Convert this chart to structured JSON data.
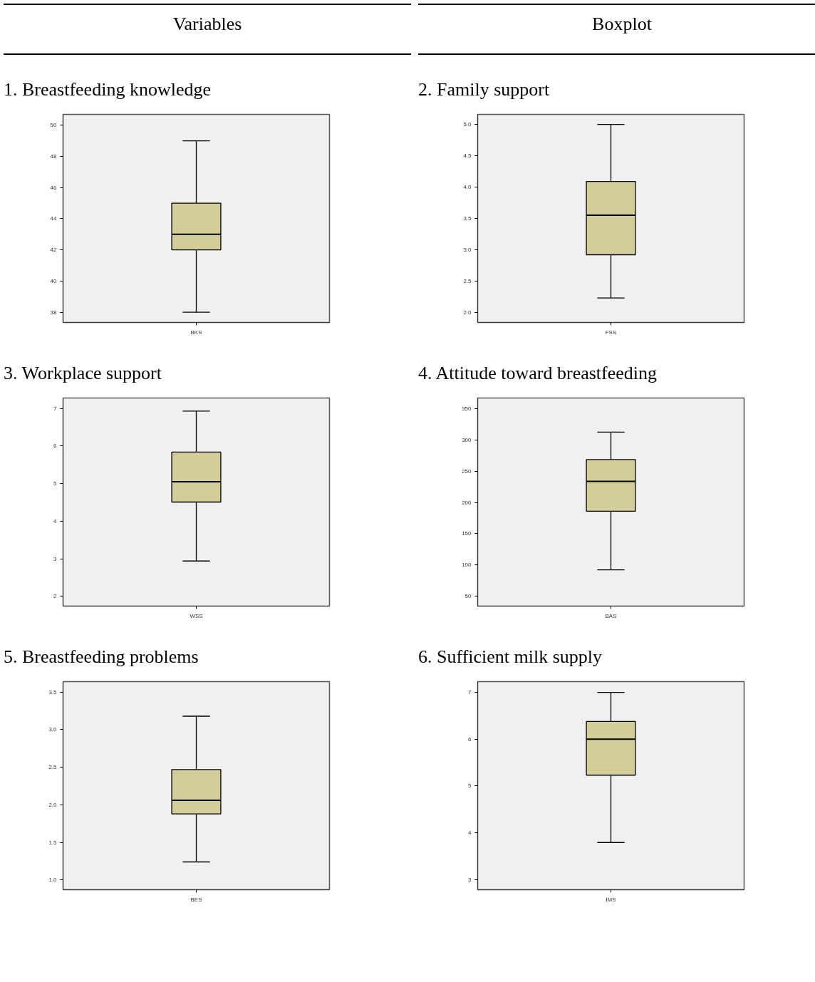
{
  "chart_data": [
    {
      "type": "box",
      "title": "1. Breastfeeding knowledge",
      "annotations": [
        "Variables"
      ],
      "categories": [
        "BKS"
      ],
      "color": "#d3ce99",
      "ylim": [
        37.34,
        50.7
      ],
      "yticks": [
        38,
        40,
        42,
        44,
        46,
        48,
        50
      ],
      "boxes": [
        {
          "low": 38,
          "q1": 42,
          "median": 43,
          "q3": 45,
          "high": 49
        }
      ]
    },
    {
      "type": "box",
      "title": "2. Family support",
      "annotations": [
        "Boxplot"
      ],
      "categories": [
        "FSS"
      ],
      "color": "#d3ce99",
      "ylim": [
        1.84,
        5.16
      ],
      "yticks": [
        {
          "value": 2,
          "label": "2.0"
        },
        2.5,
        {
          "value": 3,
          "label": "3.0"
        },
        3.5,
        {
          "value": 4,
          "label": "4.0"
        },
        4.5,
        {
          "value": 5,
          "label": "5.0"
        }
      ],
      "boxes": [
        {
          "low": 2.23,
          "q1": 2.92,
          "median": 3.55,
          "q3": 4.09,
          "high": 5.0
        }
      ]
    },
    {
      "type": "box",
      "title": "3. Workplace support",
      "categories": [
        "WSS"
      ],
      "color": "#d3ce99",
      "ylim": [
        1.74,
        7.28
      ],
      "yticks": [
        2,
        3,
        4,
        5,
        6,
        7
      ],
      "boxes": [
        {
          "low": 2.94,
          "q1": 4.51,
          "median": 5.05,
          "q3": 5.84,
          "high": 6.93
        }
      ]
    },
    {
      "type": "box",
      "title": "4. Attitude toward breastfeeding",
      "categories": [
        "BAS"
      ],
      "color": "#d3ce99",
      "ylim": [
        33.9,
        367.6
      ],
      "yticks": [
        50,
        100,
        150,
        200,
        250,
        300,
        350
      ],
      "boxes": [
        {
          "low": 92,
          "q1": 186,
          "median": 234,
          "q3": 269,
          "high": 313
        }
      ]
    },
    {
      "type": "box",
      "title": "5. Breastfeeding problems",
      "categories": [
        "BES"
      ],
      "color": "#d3ce99",
      "ylim": [
        0.87,
        3.64
      ],
      "yticks": [
        {
          "value": 1,
          "label": "1.0"
        },
        1.5,
        {
          "value": 2,
          "label": "2.0"
        },
        2.5,
        {
          "value": 3,
          "label": "3.0"
        },
        3.5
      ],
      "boxes": [
        {
          "low": 1.24,
          "q1": 1.88,
          "median": 2.06,
          "q3": 2.47,
          "high": 3.18
        }
      ]
    },
    {
      "type": "box",
      "title": "6. Sufficient milk supply",
      "categories": [
        "IMS"
      ],
      "color": "#d3ce99",
      "ylim": [
        2.78,
        7.23
      ],
      "yticks": [
        3,
        4,
        5,
        6,
        7
      ],
      "boxes": [
        {
          "low": 3.79,
          "q1": 5.23,
          "median": 6.0,
          "q3": 6.38,
          "high": 7.0
        }
      ]
    }
  ]
}
